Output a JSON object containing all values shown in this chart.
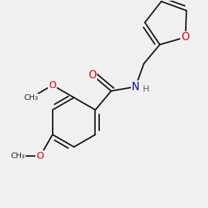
{
  "background_color": "#f0f0f0",
  "bond_color": "#1a1a1a",
  "bond_width": 1.5,
  "atom_colors": {
    "O": "#e8000d",
    "N": "#0000cd",
    "H": "#5a5a5a",
    "C": "#1a1a1a"
  },
  "font_size_atom": 10,
  "fig_size": [
    3.0,
    3.0
  ],
  "dpi": 100
}
